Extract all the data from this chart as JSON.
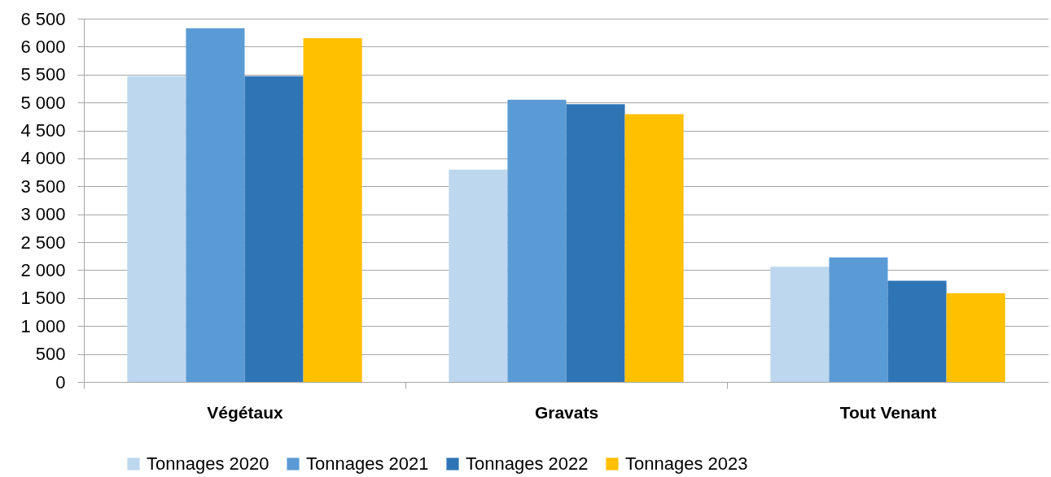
{
  "chart_data": {
    "type": "bar",
    "categories": [
      "Végétaux",
      "Gravats",
      "Tout Venant"
    ],
    "series": [
      {
        "name": "Tonnages 2020",
        "color": "#bdd7ee",
        "values": [
          5470,
          3800,
          2060
        ]
      },
      {
        "name": "Tonnages 2021",
        "color": "#5b9bd5",
        "values": [
          6330,
          5050,
          2230
        ]
      },
      {
        "name": "Tonnages 2022",
        "color": "#2e75b6",
        "values": [
          5470,
          4970,
          1810
        ]
      },
      {
        "name": "Tonnages 2023",
        "color": "#ffc000",
        "values": [
          6150,
          4790,
          1590
        ]
      }
    ],
    "ylim": [
      0,
      6500
    ],
    "yticks": [
      0,
      500,
      {
        "value": 1000,
        "label": "1 000"
      },
      {
        "value": 1500,
        "label": "1 500"
      },
      {
        "value": 2000,
        "label": "2 000"
      },
      {
        "value": 2500,
        "label": "2 500"
      },
      {
        "value": 3000,
        "label": "3 000"
      },
      {
        "value": 3500,
        "label": "3 500"
      },
      {
        "value": 4000,
        "label": "4 000"
      },
      {
        "value": 4500,
        "label": "4 500"
      },
      {
        "value": 5000,
        "label": "5 000"
      },
      {
        "value": 5500,
        "label": "5 500"
      },
      {
        "value": 6000,
        "label": "6 000"
      },
      {
        "value": 6500,
        "label": "6 500"
      }
    ],
    "grid": "y",
    "legend": "bottom"
  }
}
